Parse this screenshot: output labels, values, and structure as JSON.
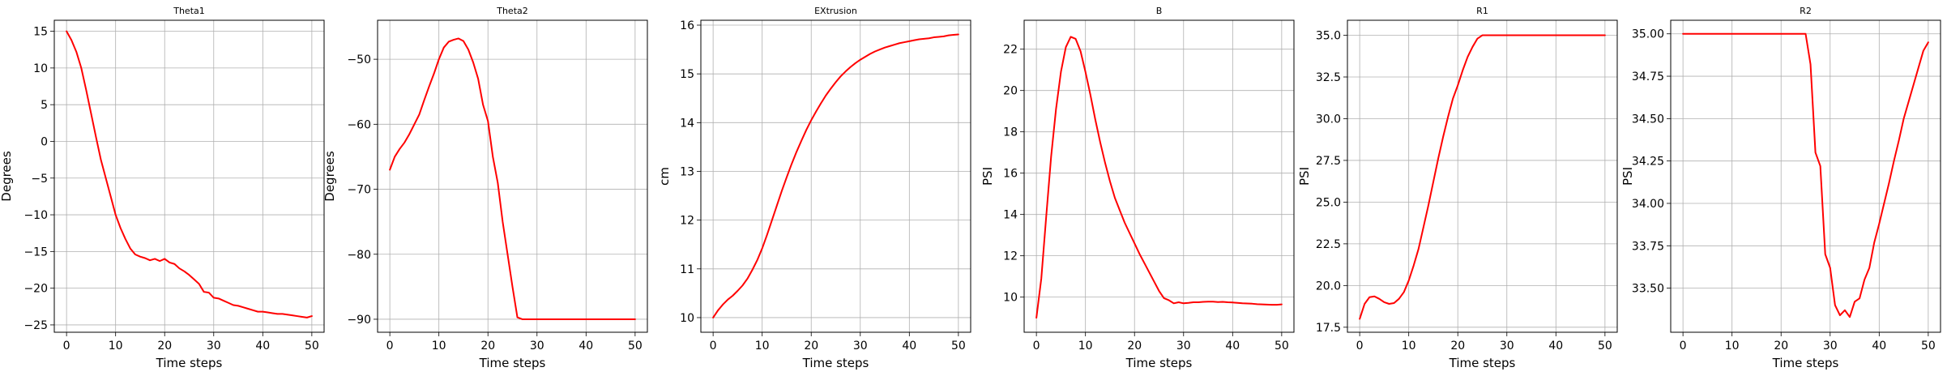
{
  "chart_data": [
    {
      "type": "line",
      "title": "Theta1",
      "xlabel": "Time steps",
      "ylabel": "Degrees",
      "xlim": [
        -2.5,
        52.5
      ],
      "ylim": [
        -26,
        16.5
      ],
      "xticks": [
        0,
        10,
        20,
        30,
        40,
        50
      ],
      "yticks": [
        -25,
        -20,
        -15,
        -10,
        -5,
        0,
        5,
        10,
        15
      ],
      "tick_labels_y": [
        "−25",
        "−20",
        "−15",
        "−10",
        "−5",
        "0",
        "5",
        "10",
        "15"
      ],
      "grid": true,
      "series": [
        {
          "color": "#ff0000",
          "x": [
            0,
            1,
            2,
            3,
            4,
            5,
            6,
            7,
            8,
            9,
            10,
            11,
            12,
            13,
            14,
            15,
            16,
            17,
            18,
            19,
            20,
            21,
            22,
            23,
            24,
            25,
            26,
            27,
            28,
            29,
            30,
            31,
            32,
            33,
            34,
            35,
            36,
            37,
            38,
            39,
            40,
            41,
            42,
            43,
            44,
            45,
            46,
            47,
            48,
            49,
            50
          ],
          "y": [
            15.0,
            13.8,
            12.2,
            10.0,
            7.0,
            3.8,
            0.6,
            -2.5,
            -5.0,
            -7.5,
            -10.0,
            -11.8,
            -13.3,
            -14.6,
            -15.4,
            -15.7,
            -15.9,
            -16.2,
            -16.0,
            -16.3,
            -16.0,
            -16.5,
            -16.7,
            -17.3,
            -17.7,
            -18.2,
            -18.8,
            -19.4,
            -20.5,
            -20.6,
            -21.3,
            -21.4,
            -21.7,
            -22.0,
            -22.3,
            -22.4,
            -22.6,
            -22.8,
            -23.0,
            -23.2,
            -23.2,
            -23.3,
            -23.4,
            -23.5,
            -23.5,
            -23.6,
            -23.7,
            -23.8,
            -23.9,
            -24.0,
            -23.8
          ]
        }
      ]
    },
    {
      "type": "line",
      "title": "Theta2",
      "xlabel": "Time steps",
      "ylabel": "Degrees",
      "xlim": [
        -2.5,
        52.5
      ],
      "ylim": [
        -92,
        -44
      ],
      "xticks": [
        0,
        10,
        20,
        30,
        40,
        50
      ],
      "yticks": [
        -90,
        -80,
        -70,
        -60,
        -50
      ],
      "tick_labels_y": [
        "−90",
        "−80",
        "−70",
        "−60",
        "−50"
      ],
      "grid": true,
      "series": [
        {
          "color": "#ff0000",
          "x": [
            0,
            1,
            2,
            3,
            4,
            5,
            6,
            7,
            8,
            9,
            10,
            11,
            12,
            13,
            14,
            15,
            16,
            17,
            18,
            19,
            20,
            21,
            22,
            23,
            24,
            25,
            26,
            27,
            28,
            29,
            30,
            31,
            32,
            33,
            34,
            35,
            36,
            37,
            38,
            39,
            40,
            41,
            42,
            43,
            44,
            45,
            46,
            47,
            48,
            49,
            50
          ],
          "y": [
            -67.0,
            -65.0,
            -63.8,
            -62.8,
            -61.5,
            -60.0,
            -58.5,
            -56.3,
            -54.2,
            -52.2,
            -50.0,
            -48.2,
            -47.3,
            -47.0,
            -46.8,
            -47.2,
            -48.5,
            -50.5,
            -53.0,
            -57.0,
            -59.5,
            -65.0,
            -69.0,
            -75.0,
            -80.0,
            -85.0,
            -89.7,
            -90.0,
            -90.0,
            -90.0,
            -90.0,
            -90.0,
            -90.0,
            -90.0,
            -90.0,
            -90.0,
            -90.0,
            -90.0,
            -90.0,
            -90.0,
            -90.0,
            -90.0,
            -90.0,
            -90.0,
            -90.0,
            -90.0,
            -90.0,
            -90.0,
            -90.0,
            -90.0,
            -90.0
          ]
        }
      ]
    },
    {
      "type": "line",
      "title": "EXtrusion",
      "xlabel": "Time steps",
      "ylabel": "cm",
      "xlim": [
        -2.5,
        52.5
      ],
      "ylim": [
        9.7,
        16.1
      ],
      "xticks": [
        0,
        10,
        20,
        30,
        40,
        50
      ],
      "yticks": [
        10,
        11,
        12,
        13,
        14,
        15,
        16
      ],
      "tick_labels_y": [
        "10",
        "11",
        "12",
        "13",
        "14",
        "15",
        "16"
      ],
      "grid": true,
      "series": [
        {
          "color": "#ff0000",
          "x": [
            0,
            1,
            2,
            3,
            4,
            5,
            6,
            7,
            8,
            9,
            10,
            11,
            12,
            13,
            14,
            15,
            16,
            17,
            18,
            19,
            20,
            21,
            22,
            23,
            24,
            25,
            26,
            27,
            28,
            29,
            30,
            31,
            32,
            33,
            34,
            35,
            36,
            37,
            38,
            39,
            40,
            41,
            42,
            43,
            44,
            45,
            46,
            47,
            48,
            49,
            50
          ],
          "y": [
            10.0,
            10.15,
            10.27,
            10.37,
            10.45,
            10.55,
            10.66,
            10.8,
            10.98,
            11.18,
            11.42,
            11.7,
            12.0,
            12.3,
            12.6,
            12.88,
            13.15,
            13.4,
            13.63,
            13.85,
            14.05,
            14.23,
            14.4,
            14.56,
            14.7,
            14.83,
            14.95,
            15.05,
            15.14,
            15.22,
            15.29,
            15.35,
            15.41,
            15.46,
            15.5,
            15.54,
            15.57,
            15.6,
            15.63,
            15.65,
            15.67,
            15.69,
            15.71,
            15.72,
            15.73,
            15.75,
            15.76,
            15.77,
            15.79,
            15.8,
            15.81
          ]
        }
      ]
    },
    {
      "type": "line",
      "title": "B",
      "xlabel": "Time steps",
      "ylabel": "PSI",
      "xlim": [
        -2.5,
        52.5
      ],
      "ylim": [
        8.3,
        23.4
      ],
      "xticks": [
        0,
        10,
        20,
        30,
        40,
        50
      ],
      "yticks": [
        10,
        12,
        14,
        16,
        18,
        20,
        22
      ],
      "tick_labels_y": [
        "10",
        "12",
        "14",
        "16",
        "18",
        "20",
        "22"
      ],
      "grid": true,
      "series": [
        {
          "color": "#ff0000",
          "x": [
            0,
            1,
            2,
            3,
            4,
            5,
            6,
            7,
            8,
            9,
            10,
            11,
            12,
            13,
            14,
            15,
            16,
            17,
            18,
            19,
            20,
            21,
            22,
            23,
            24,
            25,
            26,
            27,
            28,
            29,
            30,
            31,
            32,
            33,
            34,
            35,
            36,
            37,
            38,
            39,
            40,
            41,
            42,
            43,
            44,
            45,
            46,
            47,
            48,
            49,
            50
          ],
          "y": [
            9.0,
            10.9,
            13.9,
            16.8,
            19.1,
            20.9,
            22.1,
            22.6,
            22.5,
            21.9,
            20.9,
            19.8,
            18.6,
            17.5,
            16.5,
            15.6,
            14.8,
            14.2,
            13.6,
            13.1,
            12.6,
            12.1,
            11.65,
            11.2,
            10.75,
            10.3,
            9.95,
            9.85,
            9.7,
            9.75,
            9.7,
            9.72,
            9.75,
            9.75,
            9.77,
            9.78,
            9.78,
            9.76,
            9.77,
            9.75,
            9.74,
            9.72,
            9.7,
            9.69,
            9.68,
            9.66,
            9.65,
            9.64,
            9.63,
            9.63,
            9.65
          ]
        }
      ]
    },
    {
      "type": "line",
      "title": "R1",
      "xlabel": "Time steps",
      "ylabel": "PSI",
      "xlim": [
        -2.5,
        52.5
      ],
      "ylim": [
        17.2,
        35.9
      ],
      "xticks": [
        0,
        10,
        20,
        30,
        40,
        50
      ],
      "yticks": [
        17.5,
        20.0,
        22.5,
        25.0,
        27.5,
        30.0,
        32.5,
        35.0
      ],
      "tick_labels_y": [
        "17.5",
        "20.0",
        "22.5",
        "25.0",
        "27.5",
        "30.0",
        "32.5",
        "35.0"
      ],
      "grid": true,
      "series": [
        {
          "color": "#ff0000",
          "x": [
            0,
            1,
            2,
            3,
            4,
            5,
            6,
            7,
            8,
            9,
            10,
            11,
            12,
            13,
            14,
            15,
            16,
            17,
            18,
            19,
            20,
            21,
            22,
            23,
            24,
            25,
            26,
            27,
            28,
            29,
            30,
            31,
            32,
            33,
            34,
            35,
            36,
            37,
            38,
            39,
            40,
            41,
            42,
            43,
            44,
            45,
            46,
            47,
            48,
            49,
            50
          ],
          "y": [
            18.0,
            18.9,
            19.3,
            19.35,
            19.2,
            19.0,
            18.9,
            18.95,
            19.2,
            19.6,
            20.3,
            21.2,
            22.2,
            23.5,
            24.8,
            26.2,
            27.6,
            28.9,
            30.1,
            31.2,
            32.0,
            32.9,
            33.7,
            34.3,
            34.8,
            35.0,
            35.0,
            35.0,
            35.0,
            35.0,
            35.0,
            35.0,
            35.0,
            35.0,
            35.0,
            35.0,
            35.0,
            35.0,
            35.0,
            35.0,
            35.0,
            35.0,
            35.0,
            35.0,
            35.0,
            35.0,
            35.0,
            35.0,
            35.0,
            35.0,
            35.0
          ]
        }
      ]
    },
    {
      "type": "line",
      "title": "R2",
      "xlabel": "Time steps",
      "ylabel": "PSI",
      "xlim": [
        -2.5,
        52.5
      ],
      "ylim": [
        33.24,
        35.08
      ],
      "xticks": [
        0,
        10,
        20,
        30,
        40,
        50
      ],
      "yticks": [
        33.5,
        33.75,
        34.0,
        34.25,
        34.5,
        34.75,
        35.0
      ],
      "tick_labels_y": [
        "33.50",
        "33.75",
        "34.00",
        "34.25",
        "34.50",
        "34.75",
        "35.00"
      ],
      "grid": true,
      "series": [
        {
          "color": "#ff0000",
          "x": [
            0,
            1,
            2,
            3,
            4,
            5,
            6,
            7,
            8,
            9,
            10,
            11,
            12,
            13,
            14,
            15,
            16,
            17,
            18,
            19,
            20,
            21,
            22,
            23,
            24,
            25,
            26,
            27,
            28,
            29,
            30,
            31,
            32,
            33,
            34,
            35,
            36,
            37,
            38,
            39,
            40,
            41,
            42,
            43,
            44,
            45,
            46,
            47,
            48,
            49,
            50
          ],
          "y": [
            35.0,
            35.0,
            35.0,
            35.0,
            35.0,
            35.0,
            35.0,
            35.0,
            35.0,
            35.0,
            35.0,
            35.0,
            35.0,
            35.0,
            35.0,
            35.0,
            35.0,
            35.0,
            35.0,
            35.0,
            35.0,
            35.0,
            35.0,
            35.0,
            35.0,
            35.0,
            34.82,
            34.3,
            34.22,
            33.7,
            33.62,
            33.4,
            33.34,
            33.37,
            33.33,
            33.42,
            33.44,
            33.55,
            33.62,
            33.77,
            33.88,
            34.0,
            34.12,
            34.25,
            34.37,
            34.5,
            34.6,
            34.7,
            34.8,
            34.9,
            34.95
          ]
        }
      ]
    }
  ]
}
